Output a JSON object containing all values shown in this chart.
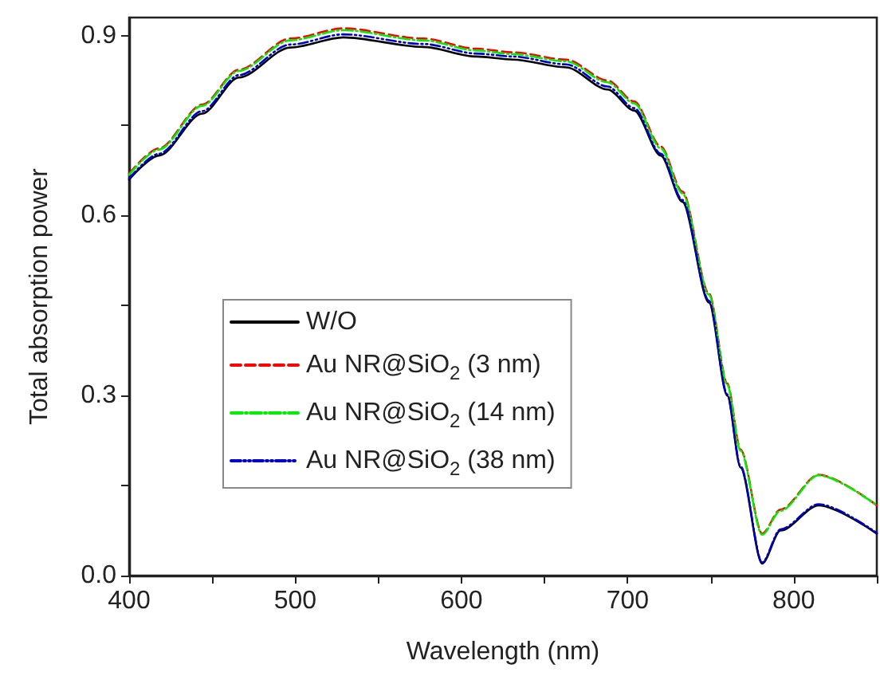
{
  "chart_data": {
    "type": "line",
    "xlabel": "Wavelength (nm)",
    "ylabel": "Total absorption power",
    "xlim": [
      400,
      850
    ],
    "ylim": [
      0,
      0.93
    ],
    "xticks": [
      400,
      {
        "value": 450,
        "label": null
      },
      500,
      {
        "value": 550,
        "label": null
      },
      600,
      {
        "value": 650,
        "label": null
      },
      700,
      {
        "value": 750,
        "label": null
      },
      800,
      {
        "value": 850,
        "label": null
      }
    ],
    "yticks": [
      "0.0",
      {
        "value": 0.15,
        "label": null
      },
      {
        "value": 0.3,
        "label": "0.3"
      },
      {
        "value": 0.45,
        "label": null
      },
      {
        "value": 0.6,
        "label": "0.6"
      },
      {
        "value": 0.75,
        "label": null
      },
      {
        "value": 0.9,
        "label": "0.9"
      }
    ],
    "x": [
      400,
      418,
      444,
      466,
      497,
      529,
      577,
      609,
      631,
      663,
      688,
      704,
      720,
      733,
      749,
      760,
      768,
      781,
      792,
      815,
      850
    ],
    "series": [
      {
        "name": "W/O",
        "color": "#000000",
        "line_style": "solid",
        "values": [
          0.66,
          0.7,
          0.77,
          0.83,
          0.88,
          0.897,
          0.881,
          0.865,
          0.86,
          0.847,
          0.81,
          0.775,
          0.7,
          0.623,
          0.455,
          0.3,
          0.18,
          0.02,
          0.075,
          0.117,
          0.07
        ]
      },
      {
        "name": "Au NR@SiO$_{2}$ (3 nm)",
        "color": "#ff0000",
        "line_style": "dashed",
        "values": [
          0.67,
          0.712,
          0.785,
          0.843,
          0.895,
          0.912,
          0.895,
          0.878,
          0.872,
          0.86,
          0.825,
          0.79,
          0.715,
          0.64,
          0.47,
          0.32,
          0.21,
          0.07,
          0.11,
          0.168,
          0.117
        ]
      },
      {
        "name": "Au NR@SiO$_{2}$ (14 nm)",
        "color": "#00ee00",
        "line_style": "dashdot",
        "values": [
          0.668,
          0.71,
          0.783,
          0.841,
          0.892,
          0.909,
          0.892,
          0.875,
          0.869,
          0.857,
          0.822,
          0.787,
          0.712,
          0.637,
          0.468,
          0.318,
          0.208,
          0.068,
          0.108,
          0.167,
          0.117
        ]
      },
      {
        "name": "Au NR@SiO$_{2}$ (38 nm)",
        "color": "#0000cc",
        "line_style": "dashdotdot",
        "values": [
          0.662,
          0.703,
          0.774,
          0.834,
          0.885,
          0.902,
          0.886,
          0.87,
          0.865,
          0.852,
          0.815,
          0.779,
          0.703,
          0.626,
          0.458,
          0.302,
          0.182,
          0.022,
          0.077,
          0.119,
          0.071
        ]
      }
    ],
    "grid": false,
    "legend": "bottom left",
    "marker": "none"
  }
}
